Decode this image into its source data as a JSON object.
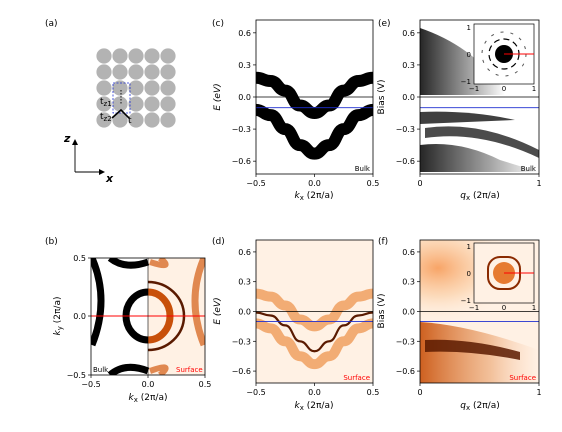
{
  "panel_labels": [
    "(a)",
    "(b)",
    "(c)",
    "(d)",
    "(e)",
    "(f)"
  ],
  "panel_a": {
    "z_label": "z",
    "x_label": "x",
    "hop_labels": [
      "t",
      "t",
      "t"
    ],
    "hop_subs": [
      "z1",
      "z2",
      ""
    ]
  },
  "panel_b": {
    "xlabel": "k",
    "xsub": "x",
    "xunit": "(2π/a)",
    "ylabel": "k",
    "ysub": "y",
    "yunit": "(2π/a)",
    "xticks": [
      "−0.5",
      "0.0",
      "0.5"
    ],
    "yticks": [
      "0.5",
      "0.0",
      "−0.5"
    ],
    "left_tag": "Bulk",
    "right_tag": "Surface"
  },
  "panel_c": {
    "xlabel": "k",
    "xsub": "x",
    "xunit": "(2π/a)",
    "ylabel": "E (eV)",
    "xticks": [
      "−0.5",
      "0.0",
      "0.5"
    ],
    "yticks": [
      "0.6",
      "0.3",
      "0.0",
      "−0.3",
      "−0.6"
    ],
    "tag": "Bulk"
  },
  "panel_d": {
    "xlabel": "k",
    "xsub": "x",
    "xunit": "(2π/a)",
    "ylabel": "E (eV)",
    "xticks": [
      "−0.5",
      "0.0",
      "0.5"
    ],
    "yticks": [
      "0.6",
      "0.3",
      "0.0",
      "−0.3",
      "−0.6"
    ],
    "tag": "Surface"
  },
  "panel_e": {
    "xlabel": "q",
    "xsub": "x",
    "xunit": "(2π/a)",
    "ylabel": "Bias (V)",
    "xticks": [
      "0",
      "1"
    ],
    "yticks": [
      "0.6",
      "0.3",
      "0.0",
      "−0.3",
      "−0.6"
    ],
    "tag": "Bulk",
    "inset_xticks": [
      "−1",
      "0",
      "1"
    ],
    "inset_yticks": [
      "1",
      "0",
      "−1"
    ]
  },
  "panel_f": {
    "xlabel": "q",
    "xsub": "x",
    "xunit": "(2π/a)",
    "ylabel": "Bias (V)",
    "xticks": [
      "0",
      "1"
    ],
    "yticks": [
      "0.6",
      "0.3",
      "0.0",
      "−0.3",
      "−0.6"
    ],
    "tag": "Surface",
    "inset_xticks": [
      "−1",
      "0",
      "1"
    ],
    "inset_yticks": [
      "1",
      "0",
      "−1"
    ]
  },
  "chart_data": [
    {
      "panel": "c",
      "type": "line",
      "x": [
        -0.5,
        -0.375,
        -0.25,
        -0.125,
        0.0,
        0.125,
        0.25,
        0.375,
        0.5
      ],
      "series": [
        {
          "values": [
            0.18,
            0.15,
            0.06,
            -0.08,
            -0.15,
            -0.08,
            0.06,
            0.15,
            0.18
          ]
        },
        {
          "values": [
            -0.12,
            -0.17,
            -0.3,
            -0.45,
            -0.53,
            -0.45,
            -0.3,
            -0.17,
            -0.12
          ]
        }
      ],
      "xlim": [
        -0.5,
        0.5
      ],
      "ylim": [
        -0.72,
        0.72
      ],
      "hlines": [
        {
          "y": 0.0,
          "color": "#000000"
        },
        {
          "y": -0.1,
          "color": "#1f2fd0"
        }
      ],
      "colors": {
        "band": "#000000"
      }
    },
    {
      "panel": "d",
      "type": "line",
      "x": [
        -0.5,
        -0.375,
        -0.25,
        -0.125,
        0.0,
        0.125,
        0.25,
        0.375,
        0.5
      ],
      "series": [
        {
          "values": [
            0.18,
            0.15,
            0.06,
            -0.08,
            -0.15,
            -0.08,
            0.06,
            0.15,
            0.18
          ]
        },
        {
          "values": [
            -0.01,
            -0.04,
            -0.14,
            -0.3,
            -0.4,
            -0.3,
            -0.14,
            -0.04,
            -0.01
          ]
        },
        {
          "values": [
            -0.12,
            -0.17,
            -0.3,
            -0.45,
            -0.53,
            -0.45,
            -0.3,
            -0.17,
            -0.12
          ]
        }
      ],
      "xlim": [
        -0.5,
        0.5
      ],
      "ylim": [
        -0.72,
        0.72
      ],
      "hlines": [
        {
          "y": 0.0,
          "color": "#000000"
        },
        {
          "y": -0.1,
          "color": "#1f2fd0"
        }
      ],
      "colors": {
        "band": "#f0a060",
        "surface_state": "#5a1a00",
        "background": "#fff1e4"
      }
    },
    {
      "panel": "e",
      "type": "heatmap",
      "xlim": [
        0,
        1
      ],
      "ylim": [
        -0.72,
        0.72
      ],
      "hlines": [
        {
          "y": 0.0,
          "color": "#000000"
        },
        {
          "y": -0.1,
          "color": "#1f2fd0"
        }
      ],
      "inset_marker_color": "#ff0000",
      "colors": {
        "intensity": "#000000"
      }
    },
    {
      "panel": "f",
      "type": "heatmap",
      "xlim": [
        0,
        1
      ],
      "ylim": [
        -0.72,
        0.72
      ],
      "hlines": [
        {
          "y": 0.0,
          "color": "#000000"
        },
        {
          "y": -0.1,
          "color": "#1f2fd0"
        }
      ],
      "inset_marker_color": "#ff0000",
      "colors": {
        "intensity": "#c8500a",
        "surface_line": "#5a1a00",
        "background": "#fff1e4"
      }
    },
    {
      "panel": "b",
      "type": "heatmap",
      "xlim": [
        -0.5,
        0.5
      ],
      "ylim": [
        -0.5,
        0.5
      ],
      "hlines": [
        {
          "y": 0.0,
          "color": "#ff0000"
        }
      ],
      "colors": {
        "bulk": "#000000",
        "surface": "#c8500a",
        "surface_background": "#fff1e4",
        "surface_tag": "#ff0000"
      }
    }
  ]
}
